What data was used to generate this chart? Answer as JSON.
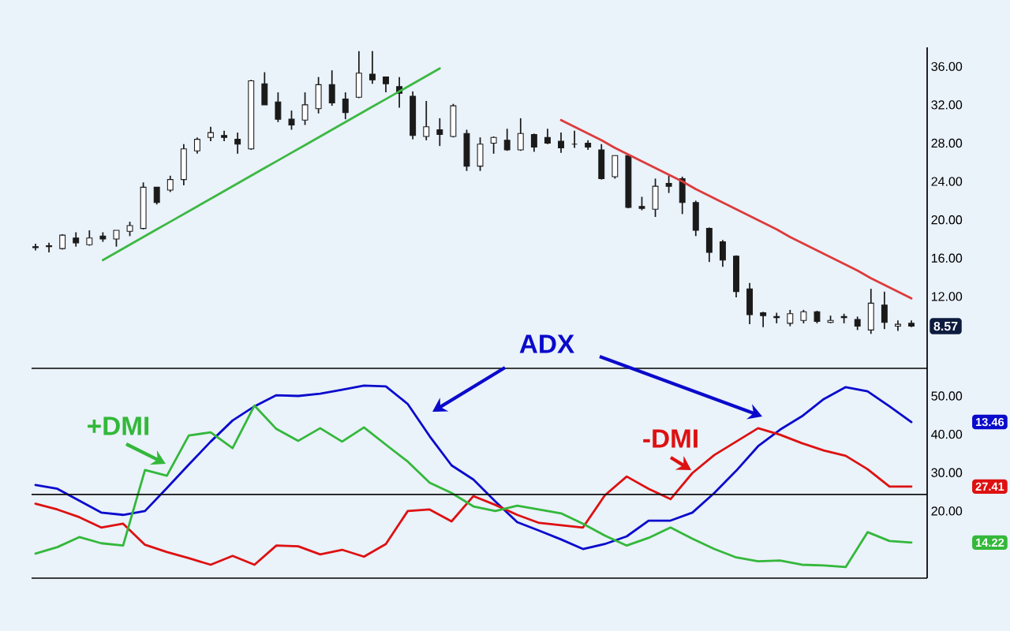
{
  "chart_data": [
    {
      "type": "candlestick",
      "color": "#1a1a1a",
      "categories": [
        null,
        null,
        null,
        null,
        null,
        null,
        null,
        null,
        null,
        null,
        null,
        null,
        null,
        null,
        null,
        null,
        null,
        null,
        null,
        null,
        null,
        null,
        null,
        null,
        null,
        null,
        null,
        null,
        null,
        null,
        null,
        null,
        null,
        null,
        null,
        null,
        null,
        null,
        null,
        null,
        null,
        null,
        null,
        null,
        null,
        null,
        null,
        null,
        null,
        null,
        null,
        null,
        null,
        null,
        null,
        null,
        null,
        null,
        null,
        null,
        null,
        null,
        null,
        null,
        null,
        null
      ],
      "ohlc": [
        [
          17.2,
          17.5,
          16.8,
          17.1
        ],
        [
          17.3,
          17.6,
          16.6,
          17.2
        ],
        [
          17.0,
          18.5,
          16.9,
          18.4
        ],
        [
          18.1,
          18.7,
          17.2,
          17.6
        ],
        [
          17.4,
          18.9,
          17.3,
          18.1
        ],
        [
          18.3,
          18.7,
          17.7,
          18.0
        ],
        [
          18.0,
          18.9,
          17.2,
          18.9
        ],
        [
          18.8,
          19.8,
          18.3,
          19.4
        ],
        [
          19.1,
          23.9,
          19.0,
          23.4
        ],
        [
          23.4,
          23.4,
          21.6,
          21.8
        ],
        [
          23.1,
          24.6,
          22.9,
          24.2
        ],
        [
          24.2,
          27.9,
          23.6,
          27.4
        ],
        [
          27.2,
          28.6,
          26.9,
          28.4
        ],
        [
          28.6,
          29.7,
          28.2,
          29.1
        ],
        [
          28.8,
          29.3,
          28.2,
          28.6
        ],
        [
          28.4,
          29.1,
          26.9,
          27.9
        ],
        [
          27.4,
          34.6,
          27.3,
          34.5
        ],
        [
          34.2,
          35.4,
          32.0,
          32.0
        ],
        [
          32.3,
          33.3,
          30.2,
          30.5
        ],
        [
          30.5,
          31.4,
          29.4,
          29.9
        ],
        [
          30.4,
          33.3,
          29.9,
          32.0
        ],
        [
          31.6,
          34.9,
          31.1,
          34.1
        ],
        [
          34.1,
          35.6,
          31.9,
          32.2
        ],
        [
          32.6,
          33.3,
          30.5,
          31.2
        ],
        [
          32.8,
          37.6,
          32.7,
          35.3
        ],
        [
          35.2,
          37.6,
          34.2,
          34.6
        ],
        [
          34.9,
          34.9,
          33.3,
          34.2
        ],
        [
          33.9,
          34.9,
          31.7,
          33.2
        ],
        [
          32.9,
          33.4,
          28.4,
          28.8
        ],
        [
          28.7,
          32.4,
          28.3,
          29.7
        ],
        [
          29.4,
          30.6,
          27.7,
          28.9
        ],
        [
          28.7,
          32.1,
          28.6,
          31.9
        ],
        [
          29.0,
          29.4,
          25.1,
          25.6
        ],
        [
          25.6,
          28.6,
          25.1,
          27.9
        ],
        [
          28.0,
          28.7,
          26.9,
          28.6
        ],
        [
          28.3,
          29.5,
          27.2,
          27.3
        ],
        [
          27.3,
          30.6,
          27.2,
          29.0
        ],
        [
          28.9,
          29.0,
          27.1,
          27.6
        ],
        [
          28.6,
          29.5,
          27.9,
          28.0
        ],
        [
          28.2,
          29.1,
          27.0,
          27.5
        ],
        [
          27.9,
          29.3,
          27.5,
          27.9
        ],
        [
          28.0,
          28.3,
          27.3,
          27.6
        ],
        [
          27.3,
          27.9,
          24.2,
          24.3
        ],
        [
          24.5,
          26.7,
          24.3,
          26.7
        ],
        [
          26.7,
          26.8,
          21.2,
          21.3
        ],
        [
          21.4,
          22.4,
          21.0,
          21.2
        ],
        [
          21.1,
          24.3,
          20.3,
          23.5
        ],
        [
          23.8,
          24.6,
          22.8,
          23.5
        ],
        [
          24.3,
          24.5,
          20.6,
          21.8
        ],
        [
          21.8,
          22.0,
          18.3,
          18.9
        ],
        [
          19.1,
          19.2,
          15.6,
          16.6
        ],
        [
          17.7,
          17.9,
          15.1,
          15.8
        ],
        [
          16.2,
          16.3,
          11.9,
          12.5
        ],
        [
          12.8,
          13.4,
          9.1,
          10.1
        ],
        [
          10.3,
          10.4,
          8.8,
          10.0
        ],
        [
          9.9,
          10.3,
          9.2,
          9.8
        ],
        [
          9.2,
          10.6,
          8.9,
          10.2
        ],
        [
          9.5,
          10.6,
          9.2,
          10.4
        ],
        [
          10.4,
          10.5,
          9.2,
          9.4
        ],
        [
          9.3,
          10.0,
          9.2,
          9.5
        ],
        [
          9.9,
          10.2,
          9.2,
          9.8
        ],
        [
          9.6,
          9.9,
          8.5,
          8.9
        ],
        [
          8.5,
          12.8,
          8.1,
          11.3
        ],
        [
          11.1,
          12.5,
          8.6,
          9.3
        ],
        [
          8.9,
          9.5,
          8.4,
          9.1
        ],
        [
          9.2,
          9.5,
          8.8,
          8.9
        ]
      ],
      "series": [
        {
          "type": "line",
          "color": "#3cb843",
          "values": [
            null,
            null,
            null,
            null,
            null,
            15.8,
            16.6,
            17.4,
            18.2,
            19.0,
            19.8,
            20.6,
            21.4,
            22.2,
            23.0,
            23.8,
            24.6,
            25.4,
            26.2,
            27.0,
            27.8,
            28.6,
            29.4,
            30.2,
            31.0,
            31.8,
            32.6,
            33.4,
            34.2,
            35.0,
            35.8,
            null,
            null,
            null,
            null,
            null,
            null,
            null,
            null,
            null,
            null,
            null,
            null,
            null,
            null,
            null,
            null,
            null,
            null,
            null,
            null,
            null,
            null,
            null,
            null,
            null,
            null,
            null,
            null,
            null,
            null,
            null,
            null,
            null,
            null,
            null
          ]
        },
        {
          "type": "line",
          "color": "#dd3b3b",
          "values": [
            null,
            null,
            null,
            null,
            null,
            null,
            null,
            null,
            null,
            null,
            null,
            null,
            null,
            null,
            null,
            null,
            null,
            null,
            null,
            null,
            null,
            null,
            null,
            null,
            null,
            null,
            null,
            null,
            null,
            null,
            null,
            null,
            null,
            null,
            null,
            null,
            null,
            null,
            null,
            30.4,
            29.7,
            29.0,
            28.3,
            27.5,
            26.8,
            26.1,
            25.4,
            24.7,
            24.0,
            23.2,
            22.5,
            21.8,
            21.1,
            20.4,
            19.7,
            19.0,
            18.2,
            17.5,
            16.8,
            16.1,
            15.4,
            14.7,
            13.9,
            13.2,
            12.5,
            11.8
          ]
        }
      ],
      "ylim": [
        4.5,
        38
      ],
      "yticks": [
        {
          "value": 12,
          "label": "12.00"
        },
        {
          "value": 16,
          "label": "16.00"
        },
        {
          "value": 20,
          "label": "20.00"
        },
        {
          "value": 24,
          "label": "24.00"
        },
        {
          "value": 28,
          "label": "28.00"
        },
        {
          "value": 32,
          "label": "32.00"
        },
        {
          "value": 36,
          "label": "36.00"
        }
      ],
      "annotations": [
        "8.57"
      ]
    },
    {
      "type": "line",
      "categories": [
        null,
        null,
        null,
        null,
        null,
        null,
        null,
        null,
        null,
        null,
        null,
        null,
        null,
        null,
        null,
        null,
        null,
        null,
        null,
        null,
        null,
        null,
        null,
        null,
        null,
        null,
        null,
        null,
        null,
        null,
        null,
        null,
        null,
        null,
        null,
        null,
        null,
        null,
        null,
        null,
        null
      ],
      "series": [
        {
          "name": "ADX",
          "color": "#0a0acc",
          "values": [
            26.8,
            25.8,
            22.7,
            19.6,
            19.0,
            20.0,
            26.0,
            32.1,
            38.1,
            43.6,
            47.3,
            50.2,
            50.0,
            50.6,
            51.6,
            52.7,
            52.5,
            47.9,
            39.5,
            31.9,
            28.2,
            22.5,
            17.1,
            14.9,
            12.6,
            10.1,
            11.4,
            13.4,
            17.5,
            17.5,
            19.6,
            24.7,
            30.5,
            36.9,
            41.2,
            44.7,
            49.2,
            52.3,
            51.2,
            47.3,
            43.2
          ]
        },
        {
          "name": "-DMI",
          "color": "#dd1111",
          "values": [
            21.9,
            20.4,
            18.4,
            15.7,
            16.7,
            11.2,
            9.3,
            7.7,
            6.0,
            8.3,
            6.0,
            11.0,
            10.8,
            8.7,
            9.9,
            8.1,
            11.4,
            20.0,
            20.4,
            17.3,
            23.9,
            21.6,
            19.0,
            16.9,
            16.3,
            15.7,
            24.1,
            29.0,
            25.8,
            23.1,
            29.9,
            34.6,
            38.1,
            41.6,
            39.9,
            37.7,
            35.8,
            34.4,
            30.9,
            26.4,
            26.4
          ]
        },
        {
          "name": "+DMI",
          "color": "#33b83a",
          "values": [
            8.9,
            10.6,
            13.2,
            11.6,
            11.0,
            30.7,
            29.2,
            39.7,
            40.5,
            36.4,
            47.5,
            41.4,
            38.3,
            41.6,
            38.1,
            41.8,
            37.3,
            32.9,
            27.4,
            24.7,
            21.2,
            20.0,
            21.4,
            20.4,
            19.4,
            16.7,
            13.6,
            11.0,
            13.0,
            15.7,
            12.8,
            10.1,
            7.9,
            6.9,
            7.1,
            6.0,
            5.8,
            5.4,
            14.5,
            12.2,
            11.8
          ]
        }
      ],
      "ylim": [
        2.5,
        57.2
      ],
      "yticks": [
        {
          "value": 20,
          "label": "20.00"
        },
        {
          "value": 30,
          "label": "30.00"
        },
        {
          "value": 40,
          "label": "40.00"
        },
        {
          "value": 50,
          "label": "50.00"
        }
      ],
      "ref_lines": [
        {
          "axis": "y",
          "value": 24.3,
          "color": "#111111"
        }
      ],
      "annotations": [
        "13.46",
        "27.41",
        "14.22"
      ]
    }
  ]
}
